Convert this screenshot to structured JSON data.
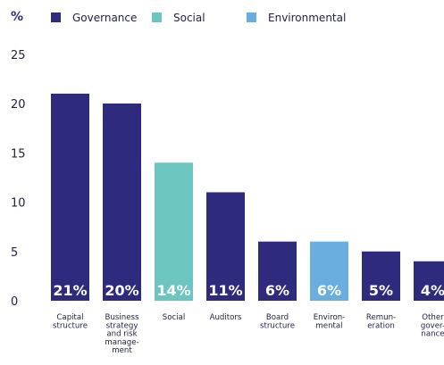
{
  "chart_data": {
    "type": "bar",
    "unit_label": "%",
    "legend": [
      {
        "name": "Governance",
        "color": "#2e2a7e"
      },
      {
        "name": "Social",
        "color": "#6dc5bf"
      },
      {
        "name": "Environmental",
        "color": "#6aaee0"
      }
    ],
    "legend_position": "top",
    "ylim": [
      0,
      25
    ],
    "yticks": [
      "0",
      "5",
      "10",
      "15",
      "20",
      "25"
    ],
    "grid": false,
    "categories": [
      [
        "Capital",
        "structure"
      ],
      [
        "Business",
        "strategy",
        "and risk",
        "manage-",
        "ment"
      ],
      [
        "Social"
      ],
      [
        "Auditors"
      ],
      [
        "Board",
        "structure"
      ],
      [
        "Environ-",
        "mental"
      ],
      [
        "Remun-",
        "eration"
      ],
      [
        "Other",
        "gover-",
        "nance"
      ]
    ],
    "values": [
      21,
      20,
      14,
      11,
      6,
      6,
      5,
      4
    ],
    "value_labels": [
      "21%",
      "20%",
      "14%",
      "11%",
      "6%",
      "6%",
      "5%",
      "4%"
    ],
    "groups": [
      "Governance",
      "Governance",
      "Social",
      "Governance",
      "Governance",
      "Environmental",
      "Governance",
      "Governance"
    ]
  }
}
